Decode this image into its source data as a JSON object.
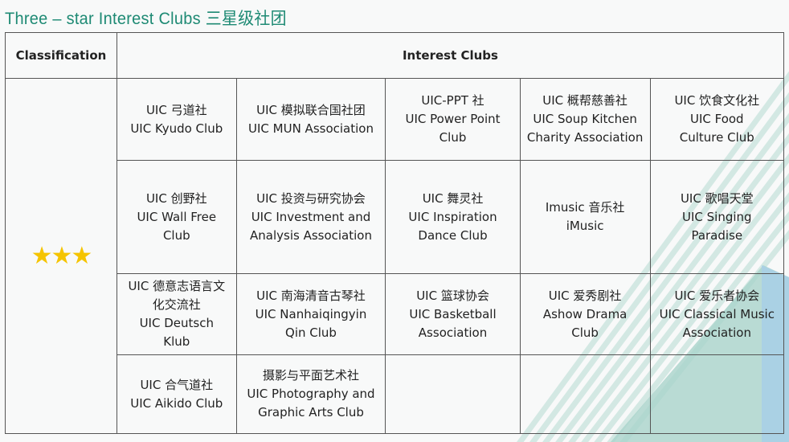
{
  "title": "Three – star Interest Clubs 三星级社团",
  "header": {
    "classification": "Classification",
    "clubs": "Interest Clubs"
  },
  "rating": "★★★",
  "colors": {
    "title": "#1e8a74",
    "star": "#f5c400",
    "stripes": "#cfe6e0",
    "triangle": "#a9d3cb",
    "blue": "#a8cfe6"
  },
  "rows": [
    [
      [
        "UIC 弓道社",
        "UIC Kyudo Club"
      ],
      [
        "UIC 模拟联合国社团",
        "UIC MUN Association"
      ],
      [
        "UIC-PPT 社",
        "UIC Power Point",
        "Club"
      ],
      [
        "UIC 概帮慈善社",
        "UIC Soup Kitchen",
        "Charity Association"
      ],
      [
        "UIC 饮食文化社",
        "UIC Food",
        "Culture Club"
      ]
    ],
    [
      [
        "UIC 创野社",
        "UIC Wall Free",
        "Club"
      ],
      [
        "UIC 投资与研究协会",
        "UIC Investment and",
        "Analysis Association"
      ],
      [
        "UIC 舞灵社",
        "UIC Inspiration",
        "Dance Club"
      ],
      [
        "Imusic 音乐社",
        "iMusic"
      ],
      [
        "UIC 歌唱天堂",
        "UIC Singing",
        "Paradise"
      ]
    ],
    [
      [
        "UIC 德意志语言文",
        "化交流社",
        "UIC Deutsch",
        "Klub"
      ],
      [
        "UIC 南海清音古琴社",
        "UIC Nanhaiqingyin",
        "Qin Club"
      ],
      [
        "UIC 篮球协会",
        "UIC Basketball",
        "Association"
      ],
      [
        "UIC 爱秀剧社",
        "Ashow Drama",
        "Club"
      ],
      [
        "UIC 爱乐者协会",
        "UIC Classical Music",
        "Association"
      ]
    ],
    [
      [
        "UIC 合气道社",
        "UIC Aikido Club"
      ],
      [
        "摄影与平面艺术社",
        "UIC Photography and",
        "Graphic Arts Club"
      ],
      [],
      [],
      []
    ]
  ]
}
